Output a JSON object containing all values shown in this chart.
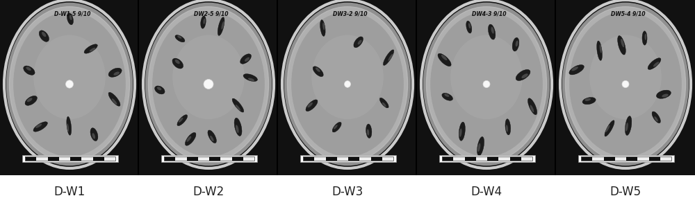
{
  "labels": [
    "D-W1",
    "D-W2",
    "D-W3",
    "D-W4",
    "D-W5"
  ],
  "n_panels": 5,
  "fig_width": 10.0,
  "fig_height": 2.96,
  "bg_color": "#ffffff",
  "label_fontsize": 12,
  "label_color": "#222222",
  "top_labels": [
    "D-W1-5 9/10",
    "DW2-5 9/10",
    "DW3-2 9/10",
    "DW4-3 9/10",
    "DW5-4 9/10"
  ],
  "seed_counts": [
    10,
    12,
    8,
    10,
    10
  ],
  "panel_bg": "#1a1a1a",
  "outer_ring_color": "#cccccc",
  "dish_bg_color": "#aaaaaa",
  "dish_inner_color": "#b8b8b8",
  "seed_dark": "#1a1a1a",
  "center_spot": "#ffffff"
}
